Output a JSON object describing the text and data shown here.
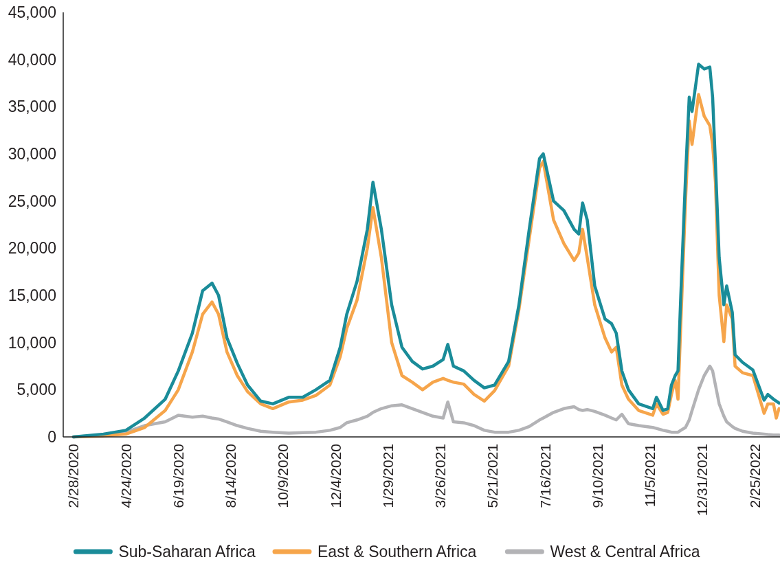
{
  "chart_data": {
    "type": "line",
    "legend": "bottom",
    "grid": false,
    "line_style": "solid",
    "marker": "none",
    "xlim": [
      "2020-02-17",
      "2022-03-24"
    ],
    "xticks": [
      {
        "value": "2020-02-28",
        "label": "2/28/2020"
      },
      {
        "value": "2020-04-24",
        "label": "4/24/2020"
      },
      {
        "value": "2020-06-19",
        "label": "6/19/2020"
      },
      {
        "value": "2020-08-14",
        "label": "8/14/2020"
      },
      {
        "value": "2020-10-09",
        "label": "10/9/2020"
      },
      {
        "value": "2020-12-04",
        "label": "12/4/2020"
      },
      {
        "value": "2021-01-29",
        "label": "1/29/2021"
      },
      {
        "value": "2021-03-26",
        "label": "3/26/2021"
      },
      {
        "value": "2021-05-21",
        "label": "5/21/2021"
      },
      {
        "value": "2021-07-16",
        "label": "7/16/2021"
      },
      {
        "value": "2021-09-10",
        "label": "9/10/2021"
      },
      {
        "value": "2021-11-05",
        "label": "11/5/2021"
      },
      {
        "value": "2021-12-31",
        "label": "12/31/2021"
      },
      {
        "value": "2022-02-25",
        "label": "2/25/2022"
      }
    ],
    "ylim": [
      0,
      45000
    ],
    "yticks": [
      0,
      {
        "value": 5000,
        "label": "5,000"
      },
      {
        "value": 10000,
        "label": "10,000"
      },
      {
        "value": 15000,
        "label": "15,000"
      },
      {
        "value": 20000,
        "label": "20,000"
      },
      {
        "value": 25000,
        "label": "25,000"
      },
      {
        "value": 30000,
        "label": "30,000"
      },
      {
        "value": 35000,
        "label": "35,000"
      },
      {
        "value": 40000,
        "label": "40,000"
      },
      {
        "value": 45000,
        "label": "45,000"
      }
    ],
    "x": [
      "2020-02-28",
      "2020-03-31",
      "2020-04-24",
      "2020-05-14",
      "2020-06-05",
      "2020-06-19",
      "2020-07-04",
      "2020-07-15",
      "2020-07-25",
      "2020-08-01",
      "2020-08-10",
      "2020-08-21",
      "2020-09-01",
      "2020-09-15",
      "2020-09-28",
      "2020-10-15",
      "2020-10-30",
      "2020-11-13",
      "2020-11-28",
      "2020-12-09",
      "2020-12-16",
      "2020-12-27",
      "2021-01-07",
      "2021-01-13",
      "2021-01-22",
      "2021-02-02",
      "2021-02-13",
      "2021-02-24",
      "2021-03-07",
      "2021-03-18",
      "2021-03-29",
      "2021-04-03",
      "2021-04-09",
      "2021-04-20",
      "2021-05-01",
      "2021-05-12",
      "2021-05-23",
      "2021-06-07",
      "2021-06-18",
      "2021-06-29",
      "2021-07-10",
      "2021-07-14",
      "2021-07-25",
      "2021-08-05",
      "2021-08-16",
      "2021-08-21",
      "2021-08-25",
      "2021-08-30",
      "2021-09-07",
      "2021-09-18",
      "2021-09-25",
      "2021-09-30",
      "2021-10-06",
      "2021-10-13",
      "2021-10-24",
      "2021-11-08",
      "2021-11-12",
      "2021-11-19",
      "2021-11-24",
      "2021-11-28",
      "2021-12-02",
      "2021-12-05",
      "2021-12-08",
      "2021-12-13",
      "2021-12-17",
      "2021-12-20",
      "2021-12-27",
      "2022-01-02",
      "2022-01-08",
      "2022-01-11",
      "2022-01-14",
      "2022-01-18",
      "2022-01-23",
      "2022-01-26",
      "2022-02-01",
      "2022-02-04",
      "2022-02-12",
      "2022-02-23",
      "2022-03-07",
      "2022-03-11",
      "2022-03-17",
      "2022-03-20",
      "2022-03-23"
    ],
    "series": [
      {
        "name": "West & Central Africa",
        "color": "#b3b3b6",
        "values": [
          0,
          200,
          500,
          1200,
          1600,
          2300,
          2100,
          2200,
          2000,
          1900,
          1600,
          1200,
          900,
          600,
          500,
          400,
          450,
          500,
          700,
          1000,
          1500,
          1800,
          2200,
          2600,
          3000,
          3300,
          3400,
          3000,
          2600,
          2200,
          2000,
          3700,
          1600,
          1500,
          1200,
          700,
          500,
          500,
          700,
          1100,
          1800,
          2000,
          2600,
          3000,
          3200,
          2900,
          2800,
          2900,
          2700,
          2300,
          2000,
          1800,
          2400,
          1400,
          1200,
          1000,
          900,
          700,
          600,
          500,
          500,
          500,
          700,
          1000,
          1800,
          2800,
          5000,
          6500,
          7500,
          7000,
          5500,
          3500,
          2200,
          1600,
          1100,
          900,
          600,
          400,
          300,
          250,
          200,
          200,
          200
        ]
      },
      {
        "name": "East & Southern Africa",
        "color": "#f6a54b",
        "values": [
          0,
          100,
          300,
          1000,
          2800,
          5000,
          9000,
          13000,
          14300,
          13000,
          9000,
          6500,
          4800,
          3500,
          3000,
          3700,
          3900,
          4400,
          5500,
          8500,
          11500,
          14500,
          20000,
          24300,
          19000,
          10000,
          6500,
          5800,
          5000,
          5800,
          6200,
          6000,
          5800,
          5600,
          4500,
          3800,
          4900,
          7500,
          13500,
          21000,
          28500,
          29200,
          23000,
          20500,
          18700,
          19500,
          22000,
          19000,
          14000,
          10500,
          9000,
          9500,
          5500,
          4000,
          2800,
          2300,
          3500,
          2400,
          2600,
          4500,
          6000,
          4000,
          12000,
          25000,
          33500,
          31000,
          36300,
          34000,
          33000,
          31000,
          27000,
          15000,
          10100,
          14000,
          12500,
          7500,
          6800,
          6500,
          2500,
          3500,
          3500,
          2000,
          3000
        ]
      },
      {
        "name": "Sub-Saharan Africa",
        "color": "#1a8c99",
        "values": [
          0,
          300,
          700,
          2000,
          4000,
          7000,
          11000,
          15500,
          16300,
          15000,
          10500,
          7800,
          5500,
          3800,
          3500,
          4200,
          4200,
          5000,
          6000,
          9500,
          13000,
          16500,
          22000,
          27000,
          22000,
          14000,
          9500,
          8000,
          7200,
          7500,
          8200,
          9800,
          7500,
          7000,
          6000,
          5200,
          5500,
          8000,
          14000,
          22000,
          29500,
          30000,
          25000,
          24000,
          22000,
          21500,
          24800,
          23000,
          16000,
          12500,
          12000,
          11000,
          7000,
          5000,
          3500,
          3000,
          4200,
          2800,
          3000,
          5500,
          6500,
          7000,
          15000,
          27500,
          36000,
          34500,
          39500,
          39000,
          39200,
          36000,
          29000,
          19000,
          14000,
          16000,
          13200,
          8700,
          7900,
          7100,
          3900,
          4500,
          4000,
          3800,
          3600
        ]
      }
    ]
  }
}
